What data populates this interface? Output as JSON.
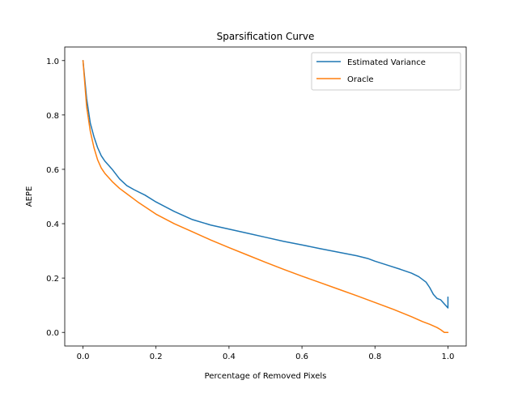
{
  "chart_data": {
    "type": "line",
    "title": "Sparsification Curve",
    "xlabel": "Percentage of Removed Pixels",
    "ylabel": "AEPE",
    "xlim": [
      -0.05,
      1.05
    ],
    "ylim": [
      -0.05,
      1.05
    ],
    "xticks": [
      0.0,
      0.2,
      0.4,
      0.6,
      0.8,
      1.0
    ],
    "xtick_labels": [
      "0.0",
      "0.2",
      "0.4",
      "0.6",
      "0.8",
      "1.0"
    ],
    "yticks": [
      0.0,
      0.2,
      0.4,
      0.6,
      0.8,
      1.0
    ],
    "ytick_labels": [
      "0.0",
      "0.2",
      "0.4",
      "0.6",
      "0.8",
      "1.0"
    ],
    "grid": false,
    "legend": "top-right",
    "series": [
      {
        "name": "Estimated Variance",
        "color": "#1f77b4",
        "x": [
          0.0,
          0.01,
          0.02,
          0.03,
          0.04,
          0.05,
          0.06,
          0.07,
          0.08,
          0.1,
          0.12,
          0.14,
          0.17,
          0.2,
          0.25,
          0.3,
          0.35,
          0.4,
          0.45,
          0.5,
          0.55,
          0.6,
          0.65,
          0.7,
          0.75,
          0.78,
          0.8,
          0.84,
          0.87,
          0.9,
          0.92,
          0.94,
          0.95,
          0.96,
          0.97,
          0.98,
          0.99,
          1.0,
          1.0
        ],
        "y": [
          1.0,
          0.86,
          0.77,
          0.72,
          0.68,
          0.65,
          0.63,
          0.615,
          0.6,
          0.565,
          0.54,
          0.525,
          0.505,
          0.48,
          0.445,
          0.415,
          0.395,
          0.38,
          0.365,
          0.35,
          0.335,
          0.322,
          0.308,
          0.295,
          0.282,
          0.272,
          0.262,
          0.245,
          0.232,
          0.218,
          0.205,
          0.185,
          0.165,
          0.14,
          0.125,
          0.12,
          0.105,
          0.09,
          0.13
        ]
      },
      {
        "name": "Oracle",
        "color": "#ff7f0e",
        "x": [
          0.0,
          0.01,
          0.02,
          0.03,
          0.04,
          0.05,
          0.06,
          0.08,
          0.1,
          0.12,
          0.15,
          0.2,
          0.25,
          0.3,
          0.35,
          0.4,
          0.45,
          0.5,
          0.55,
          0.6,
          0.65,
          0.7,
          0.75,
          0.8,
          0.85,
          0.9,
          0.93,
          0.95,
          0.97,
          0.98,
          0.99,
          0.995,
          1.0
        ],
        "y": [
          1.0,
          0.83,
          0.74,
          0.68,
          0.635,
          0.605,
          0.585,
          0.555,
          0.53,
          0.51,
          0.48,
          0.435,
          0.4,
          0.37,
          0.34,
          0.312,
          0.285,
          0.258,
          0.232,
          0.207,
          0.183,
          0.159,
          0.135,
          0.11,
          0.085,
          0.058,
          0.04,
          0.03,
          0.018,
          0.01,
          0.0,
          0.0,
          0.0
        ]
      }
    ]
  }
}
